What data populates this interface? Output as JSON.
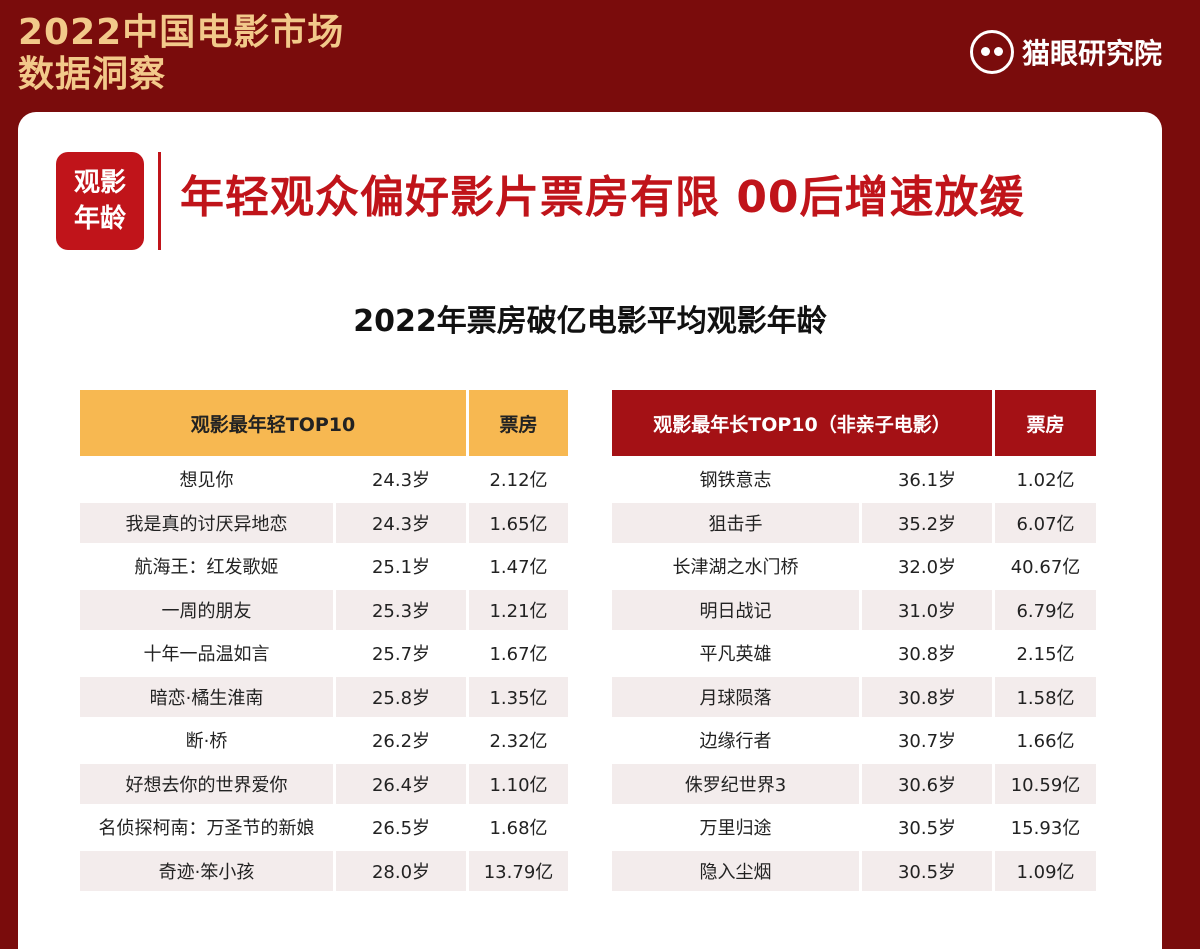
{
  "header": {
    "title_line1": "2022中国电影市场",
    "title_line2": "数据洞察",
    "brand": "猫眼研究院",
    "brand_logo_icon": "cat-eye-logo-icon"
  },
  "card": {
    "tag_line1": "观影",
    "tag_line2": "年龄",
    "headline": "年轻观众偏好影片票房有限 00后增速放缓",
    "subtitle": "2022年票房破亿电影平均观影年龄"
  },
  "colors": {
    "background": "#7a0c0c",
    "accent_red": "#c0141a",
    "header_gold": "#f2c98a",
    "young_table_header": "#f7b851",
    "old_table_header": "#a41115"
  },
  "young_table": {
    "header_title": "观影最年轻TOP10",
    "header_box": "票房",
    "rows": [
      {
        "name": "想见你",
        "age": "24.3岁",
        "box": "2.12亿"
      },
      {
        "name": "我是真的讨厌异地恋",
        "age": "24.3岁",
        "box": "1.65亿"
      },
      {
        "name": "航海王：红发歌姬",
        "age": "25.1岁",
        "box": "1.47亿"
      },
      {
        "name": "一周的朋友",
        "age": "25.3岁",
        "box": "1.21亿"
      },
      {
        "name": "十年一品温如言",
        "age": "25.7岁",
        "box": "1.67亿"
      },
      {
        "name": "暗恋·橘生淮南",
        "age": "25.8岁",
        "box": "1.35亿"
      },
      {
        "name": "断·桥",
        "age": "26.2岁",
        "box": "2.32亿"
      },
      {
        "name": "好想去你的世界爱你",
        "age": "26.4岁",
        "box": "1.10亿"
      },
      {
        "name": "名侦探柯南：万圣节的新娘",
        "age": "26.5岁",
        "box": "1.68亿"
      },
      {
        "name": "奇迹·笨小孩",
        "age": "28.0岁",
        "box": "13.79亿"
      }
    ]
  },
  "old_table": {
    "header_title": "观影最年长TOP10（非亲子电影）",
    "header_box": "票房",
    "rows": [
      {
        "name": "钢铁意志",
        "age": "36.1岁",
        "box": "1.02亿"
      },
      {
        "name": "狙击手",
        "age": "35.2岁",
        "box": "6.07亿"
      },
      {
        "name": "长津湖之水门桥",
        "age": "32.0岁",
        "box": "40.67亿"
      },
      {
        "name": "明日战记",
        "age": "31.0岁",
        "box": "6.79亿"
      },
      {
        "name": "平凡英雄",
        "age": "30.8岁",
        "box": "2.15亿"
      },
      {
        "name": "月球陨落",
        "age": "30.8岁",
        "box": "1.58亿"
      },
      {
        "name": "边缘行者",
        "age": "30.7岁",
        "box": "1.66亿"
      },
      {
        "name": "侏罗纪世界3",
        "age": "30.6岁",
        "box": "10.59亿"
      },
      {
        "name": "万里归途",
        "age": "30.5岁",
        "box": "15.93亿"
      },
      {
        "name": "隐入尘烟",
        "age": "30.5岁",
        "box": "1.09亿"
      }
    ]
  }
}
